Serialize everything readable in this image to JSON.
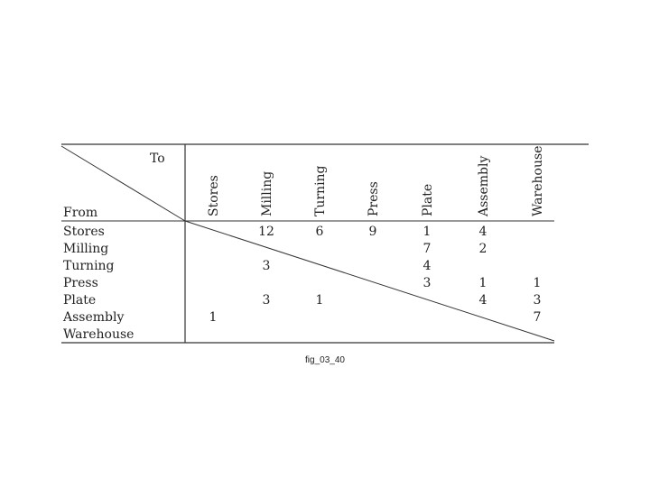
{
  "matrix": {
    "to_label": "To",
    "from_label": "From",
    "columns": [
      "Stores",
      "Milling",
      "Turning",
      "Press",
      "Plate",
      "Assembly",
      "Warehouse"
    ],
    "rows": [
      "Stores",
      "Milling",
      "Turning",
      "Press",
      "Plate",
      "Assembly",
      "Warehouse"
    ],
    "cells": [
      {
        "row": 0,
        "col": 1,
        "value": "12"
      },
      {
        "row": 0,
        "col": 2,
        "value": "6"
      },
      {
        "row": 0,
        "col": 3,
        "value": "9"
      },
      {
        "row": 0,
        "col": 4,
        "value": "1"
      },
      {
        "row": 0,
        "col": 5,
        "value": "4"
      },
      {
        "row": 1,
        "col": 4,
        "value": "7"
      },
      {
        "row": 1,
        "col": 5,
        "value": "2"
      },
      {
        "row": 2,
        "col": 1,
        "value": "3"
      },
      {
        "row": 2,
        "col": 4,
        "value": "4"
      },
      {
        "row": 3,
        "col": 4,
        "value": "3"
      },
      {
        "row": 3,
        "col": 5,
        "value": "1"
      },
      {
        "row": 3,
        "col": 6,
        "value": "1"
      },
      {
        "row": 4,
        "col": 1,
        "value": "3"
      },
      {
        "row": 4,
        "col": 2,
        "value": "1"
      },
      {
        "row": 4,
        "col": 5,
        "value": "4"
      },
      {
        "row": 4,
        "col": 6,
        "value": "3"
      },
      {
        "row": 5,
        "col": 0,
        "value": "1"
      },
      {
        "row": 5,
        "col": 6,
        "value": "7"
      }
    ]
  },
  "caption": "fig_03_40"
}
